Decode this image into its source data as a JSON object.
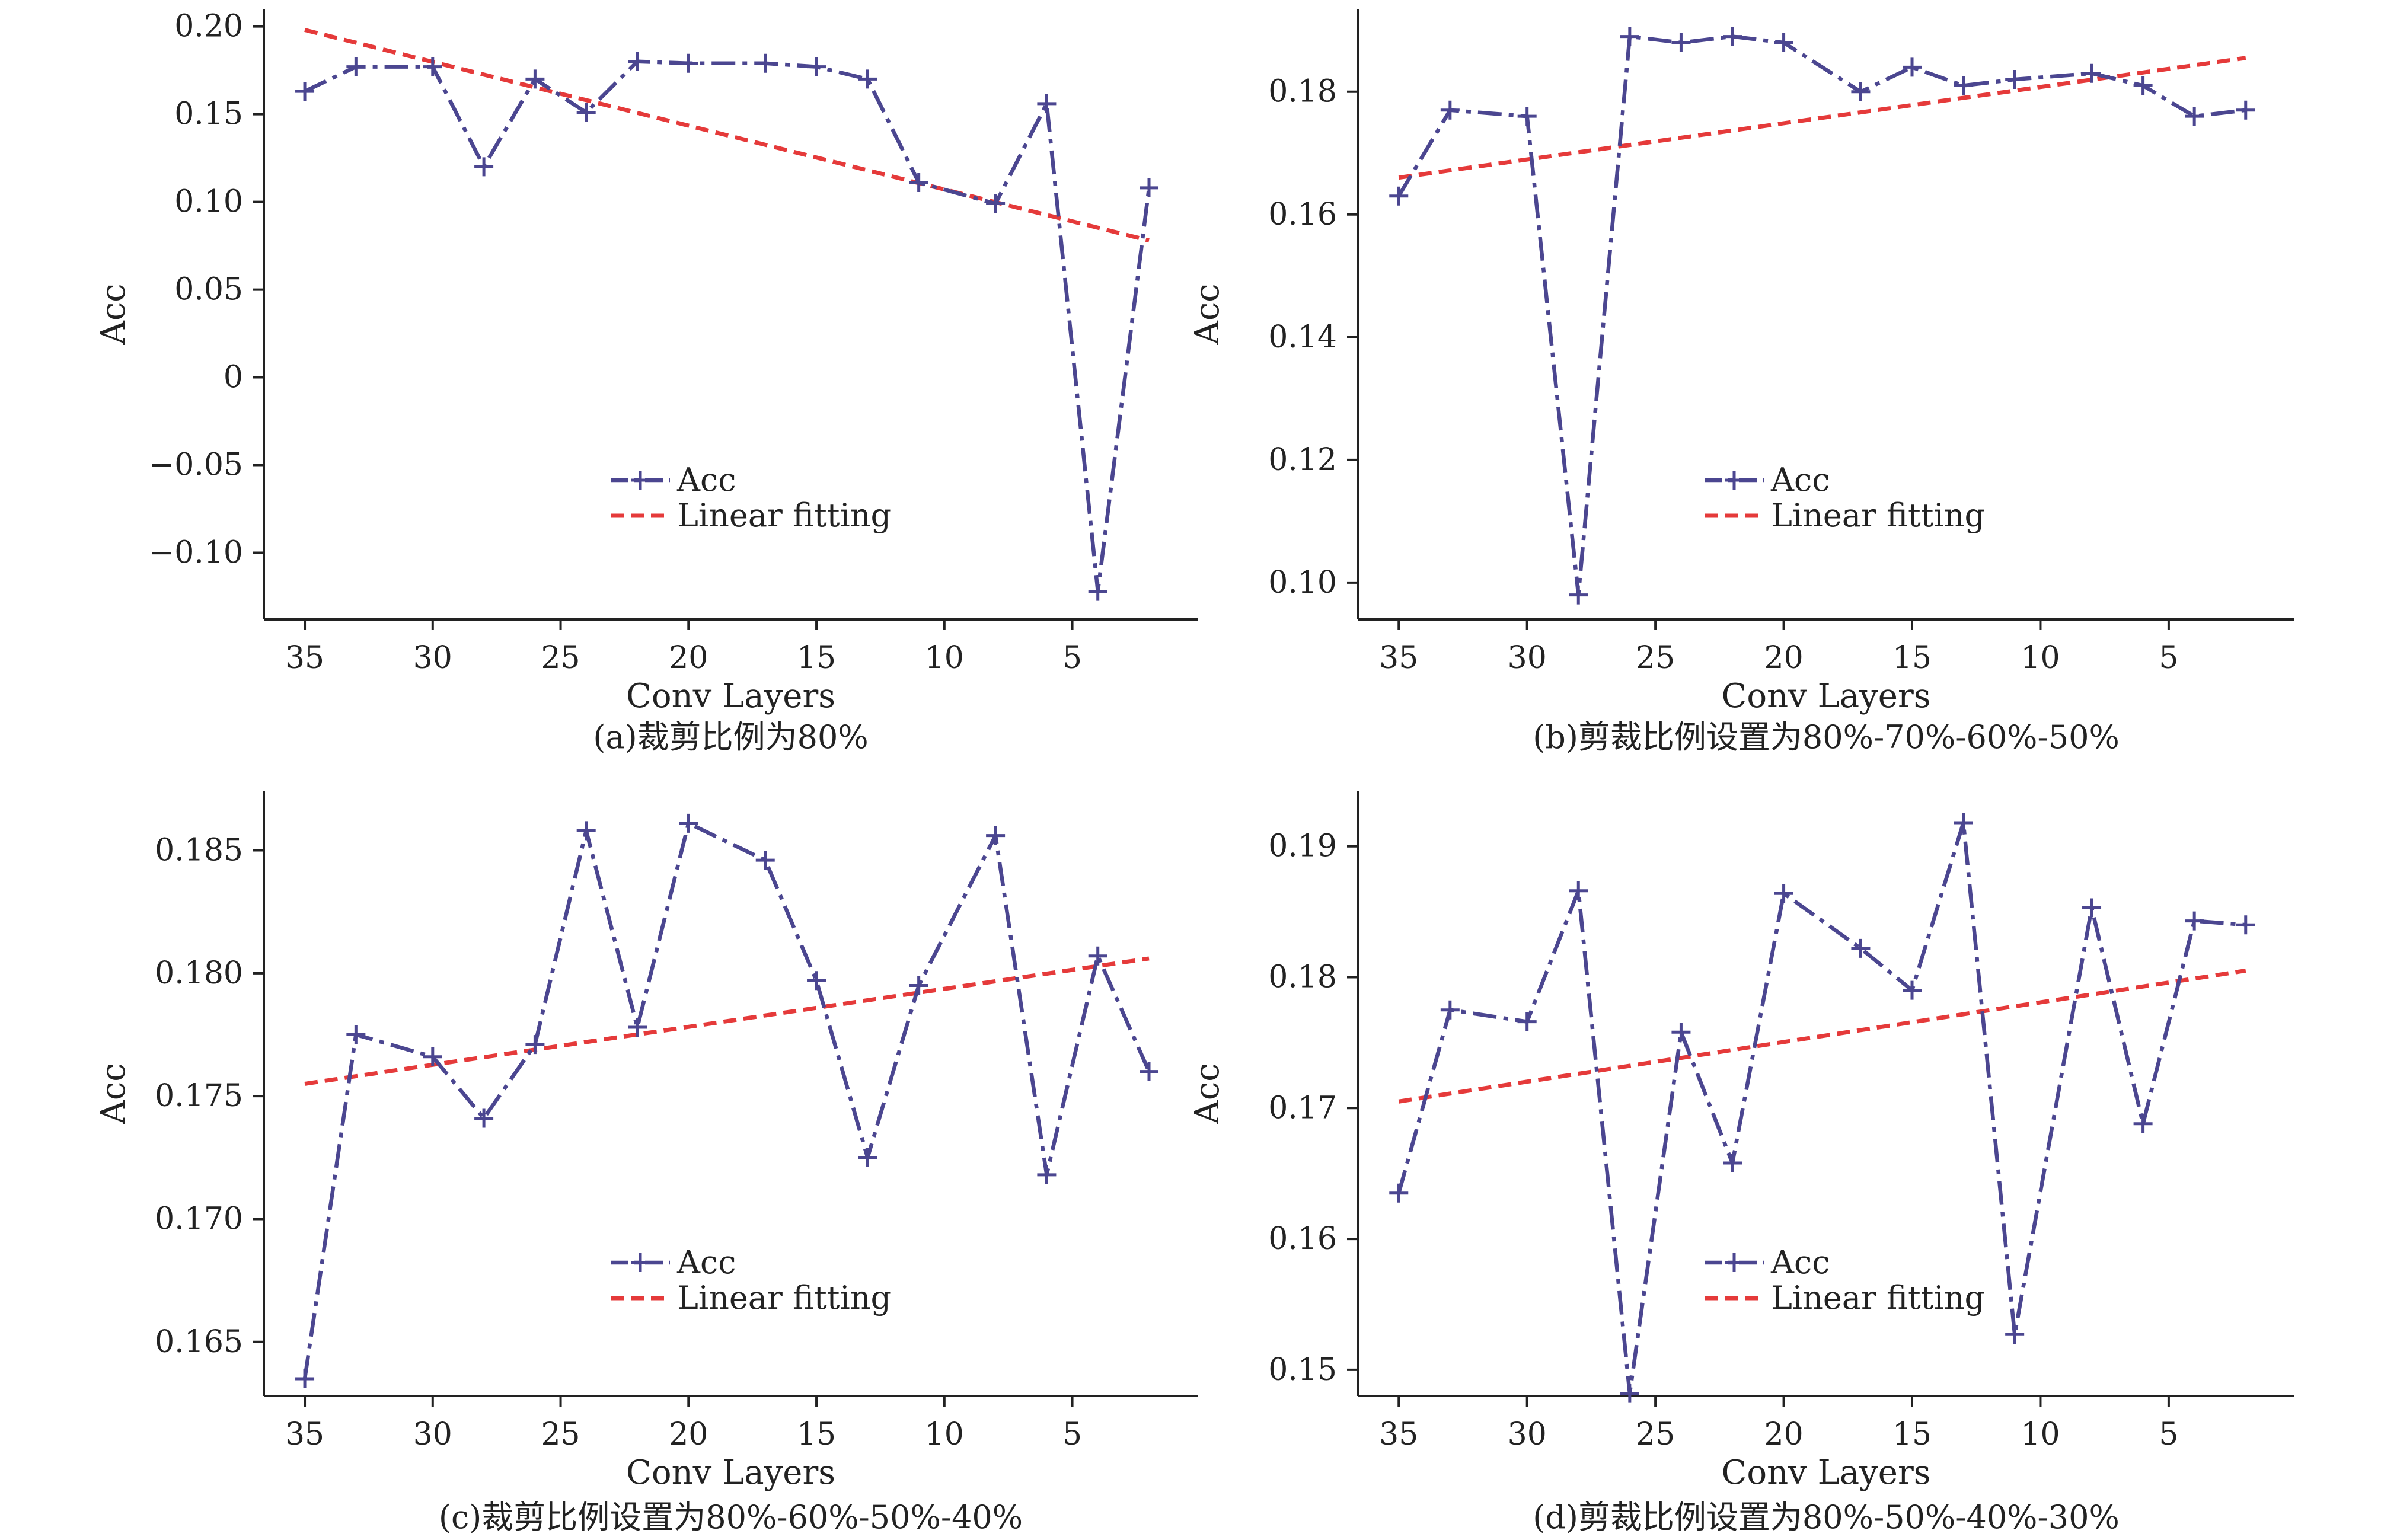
{
  "colors": {
    "acc": "#4b4690",
    "fit": "#e53a3a",
    "axis": "#222222",
    "background": "#ffffff"
  },
  "chart_data": [
    {
      "type": "line",
      "caption": "(a)裁剪比例为80%",
      "xlabel": "Conv Layers",
      "ylabel": "Acc",
      "x_reversed": true,
      "xlim": [
        36.6,
        0.1
      ],
      "ylim": [
        -0.138,
        0.21
      ],
      "xticks": [
        35,
        30,
        25,
        20,
        15,
        10,
        5
      ],
      "xtick_labels": [
        "35",
        "30",
        "25",
        "20",
        "15",
        "10",
        "5"
      ],
      "yticks": [
        0.2,
        0.15,
        0.1,
        0.05,
        0,
        -0.05,
        -0.1
      ],
      "ytick_labels": [
        "0.20",
        "0.15",
        "0.10",
        "0.05",
        "0",
        "−0.05",
        "−0.10"
      ],
      "legend": {
        "position": "center-bottom",
        "entries": [
          "Acc",
          "Linear fitting"
        ]
      },
      "series": [
        {
          "name": "Acc",
          "style": "dash-dot",
          "marker": "plus",
          "x": [
            35,
            33,
            30,
            28,
            26,
            24,
            22,
            20,
            17,
            15,
            13,
            11,
            8,
            6,
            4,
            2
          ],
          "y": [
            0.163,
            0.177,
            0.177,
            0.12,
            0.17,
            0.151,
            0.18,
            0.179,
            0.179,
            0.177,
            0.17,
            0.111,
            0.099,
            0.156,
            -0.122,
            0.108
          ]
        },
        {
          "name": "Linear fitting",
          "style": "dashed",
          "x": [
            35,
            2
          ],
          "y": [
            0.198,
            0.078
          ]
        }
      ]
    },
    {
      "type": "line",
      "caption": "(b)剪裁比例设置为80%-70%-60%-50%",
      "xlabel": "Conv Layers",
      "ylabel": "Acc",
      "x_reversed": true,
      "xlim": [
        36.6,
        0.1
      ],
      "ylim": [
        0.094,
        0.1935
      ],
      "xticks": [
        35,
        30,
        25,
        20,
        15,
        10,
        5
      ],
      "xtick_labels": [
        "35",
        "30",
        "25",
        "20",
        "15",
        "10",
        "5"
      ],
      "yticks": [
        0.18,
        0.16,
        0.14,
        0.12,
        0.1
      ],
      "ytick_labels": [
        "0.18",
        "0.16",
        "0.14",
        "0.12",
        "0.10"
      ],
      "legend": {
        "position": "center-bottom",
        "entries": [
          "Acc",
          "Linear fitting"
        ]
      },
      "series": [
        {
          "name": "Acc",
          "style": "dash-dot",
          "marker": "plus",
          "x": [
            35,
            33,
            30,
            28,
            26,
            24,
            22,
            20,
            17,
            15,
            13,
            11,
            8,
            6,
            4,
            2
          ],
          "y": [
            0.163,
            0.177,
            0.176,
            0.098,
            0.189,
            0.188,
            0.189,
            0.188,
            0.18,
            0.184,
            0.181,
            0.182,
            0.183,
            0.181,
            0.176,
            0.177
          ]
        },
        {
          "name": "Linear fitting",
          "style": "dashed",
          "x": [
            35,
            2
          ],
          "y": [
            0.166,
            0.1855
          ]
        }
      ]
    },
    {
      "type": "line",
      "caption": "(c)裁剪比例设置为80%-60%-50%-40%",
      "xlabel": "Conv Layers",
      "ylabel": "Acc",
      "x_reversed": true,
      "xlim": [
        36.6,
        0.1
      ],
      "ylim": [
        0.1628,
        0.1874
      ],
      "xticks": [
        35,
        30,
        25,
        20,
        15,
        10,
        5
      ],
      "xtick_labels": [
        "35",
        "30",
        "25",
        "20",
        "15",
        "10",
        "5"
      ],
      "yticks": [
        0.185,
        0.18,
        0.175,
        0.17,
        0.165
      ],
      "ytick_labels": [
        "0.185",
        "0.180",
        "0.175",
        "0.170",
        "0.165"
      ],
      "legend": {
        "position": "center-bottom",
        "entries": [
          "Acc",
          "Linear fitting"
        ]
      },
      "series": [
        {
          "name": "Acc",
          "style": "dash-dot",
          "marker": "plus",
          "x": [
            35,
            33,
            30,
            28,
            26,
            24,
            22,
            20,
            17,
            15,
            13,
            11,
            8,
            6,
            4,
            2
          ],
          "y": [
            0.1635,
            0.1775,
            0.1766,
            0.1741,
            0.1771,
            0.1858,
            0.1778,
            0.1861,
            0.1846,
            0.1797,
            0.1725,
            0.1795,
            0.1856,
            0.1718,
            0.1807,
            0.176
          ]
        },
        {
          "name": "Linear fitting",
          "style": "dashed",
          "x": [
            35,
            2
          ],
          "y": [
            0.1755,
            0.1806
          ]
        }
      ]
    },
    {
      "type": "line",
      "caption": "(d)剪裁比例设置为80%-50%-40%-30%",
      "xlabel": "Conv Layers",
      "ylabel": "Acc",
      "x_reversed": true,
      "xlim": [
        36.6,
        0.1
      ],
      "ylim": [
        0.148,
        0.1942
      ],
      "xticks": [
        35,
        30,
        25,
        20,
        15,
        10,
        5
      ],
      "xtick_labels": [
        "35",
        "30",
        "25",
        "20",
        "15",
        "10",
        "5"
      ],
      "yticks": [
        0.19,
        0.18,
        0.17,
        0.16,
        0.15
      ],
      "ytick_labels": [
        "0.19",
        "0.18",
        "0.17",
        "0.16",
        "0.15"
      ],
      "legend": {
        "position": "center-bottom",
        "entries": [
          "Acc",
          "Linear fitting"
        ]
      },
      "series": [
        {
          "name": "Acc",
          "style": "dash-dot",
          "marker": "plus",
          "x": [
            35,
            33,
            30,
            28,
            26,
            24,
            22,
            20,
            17,
            15,
            13,
            11,
            8,
            6,
            4,
            2
          ],
          "y": [
            0.1635,
            0.1775,
            0.1766,
            0.1866,
            0.1482,
            0.1758,
            0.1658,
            0.1864,
            0.1822,
            0.179,
            0.1918,
            0.1527,
            0.1853,
            0.1688,
            0.1843,
            0.184
          ]
        },
        {
          "name": "Linear fitting",
          "style": "dashed",
          "x": [
            35,
            2
          ],
          "y": [
            0.1705,
            0.1805
          ]
        }
      ]
    }
  ]
}
